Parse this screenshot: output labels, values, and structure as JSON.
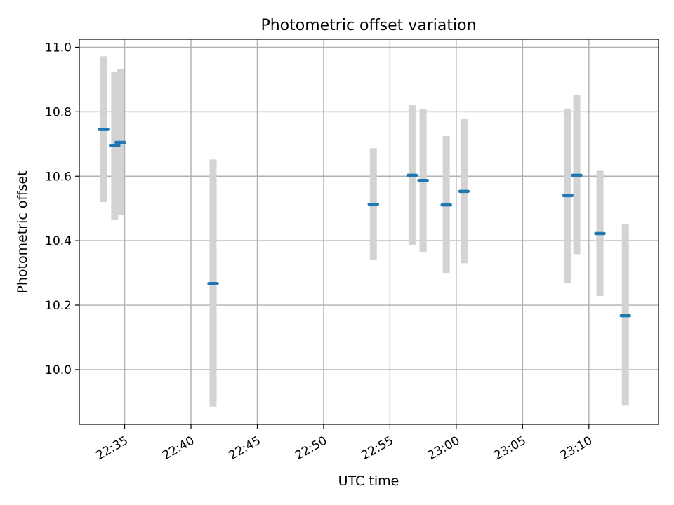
{
  "chart_data": {
    "type": "scatter",
    "title": "Photometric offset variation",
    "xlabel": "UTC time",
    "ylabel": "Photometric offset",
    "grid": true,
    "x_ticks": [
      "22:35",
      "22:40",
      "22:45",
      "22:50",
      "22:55",
      "23:00",
      "23:05",
      "23:10"
    ],
    "y_ticks": [
      "10.0",
      "10.2",
      "10.4",
      "10.6",
      "10.8",
      "11.0"
    ],
    "xlim": [
      "22:31:35",
      "23:15:15"
    ],
    "ylim": [
      9.83,
      11.025
    ],
    "colors": {
      "marker": "#1f77b4",
      "error_bar": "#d3d3d3",
      "grid": "#b0b0b0"
    },
    "series": [
      {
        "x": [
          "22:33:25",
          "22:34:15",
          "22:34:40",
          "22:41:40",
          "22:53:45",
          "22:56:40",
          "22:57:30",
          "22:59:15",
          "23:00:35",
          "23:08:25",
          "23:09:05",
          "23:10:50",
          "23:12:45"
        ],
        "y": [
          10.745,
          10.695,
          10.705,
          10.267,
          10.513,
          10.603,
          10.587,
          10.511,
          10.553,
          10.54,
          10.603,
          10.422,
          10.167
        ],
        "y_low": [
          10.52,
          10.465,
          10.48,
          9.885,
          10.34,
          10.385,
          10.365,
          10.3,
          10.33,
          10.268,
          10.358,
          10.228,
          9.888
        ],
        "y_high": [
          10.972,
          10.925,
          10.932,
          10.652,
          10.687,
          10.82,
          10.808,
          10.725,
          10.778,
          10.81,
          10.852,
          10.617,
          10.45
        ]
      }
    ]
  }
}
